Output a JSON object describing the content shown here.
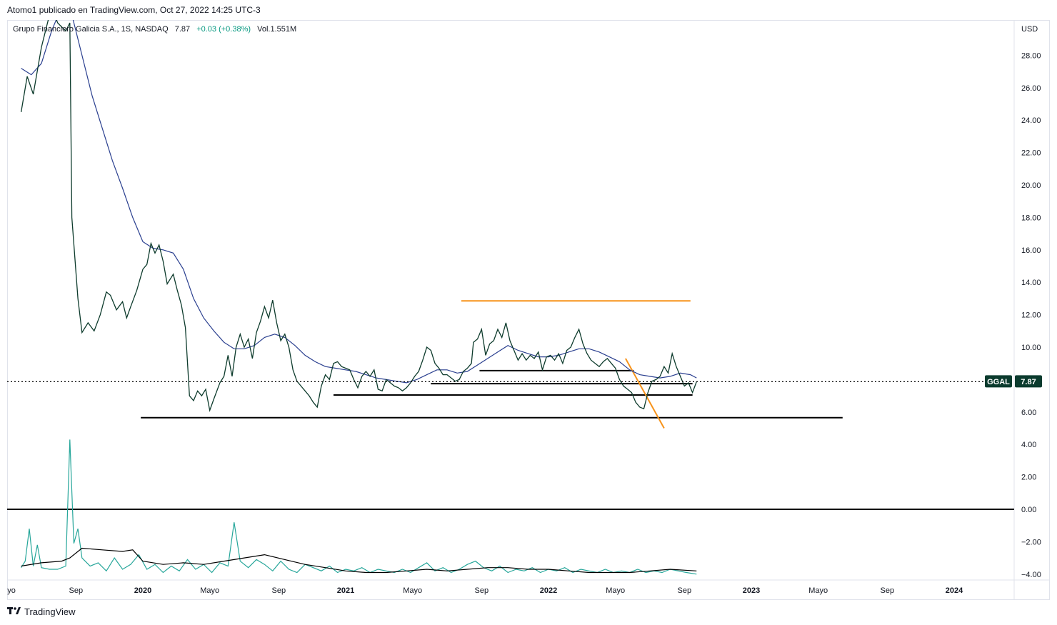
{
  "header": {
    "publisher_line": "Atomo1 publicado en TradingView.com, Oct 27, 2022 14:25 UTC-3"
  },
  "legend": {
    "name": "Grupo Financiero Galicia S.A., 1S, NASDAQ",
    "price": "7.87",
    "change": "+0.03 (+0.38%)",
    "volume": "Vol.1.551M"
  },
  "price_badge": {
    "symbol": "GGAL",
    "value": "7.87",
    "color": "#0b3b2e"
  },
  "brand": {
    "name": "TradingView",
    "logo": "tradingview-logo-icon"
  },
  "colors": {
    "price_line": "#0d3b2c",
    "ma_line": "#2a3f8f",
    "osc_line": "#26a69a",
    "osc_avg": "#000000",
    "orange": "#f7931a",
    "support": "#000000"
  },
  "chart_data": {
    "type": "line",
    "currency": "USD",
    "y_ticks": [
      "28.00",
      "26.00",
      "24.00",
      "22.00",
      "20.00",
      "18.00",
      "16.00",
      "14.00",
      "12.00",
      "10.00",
      "8.00",
      "6.00",
      "4.00",
      "2.00",
      "0.00",
      "−2.00",
      "−4.00"
    ],
    "x_ticks": [
      {
        "label": "yo",
        "bold": false
      },
      {
        "label": "Sep",
        "bold": false
      },
      {
        "label": "2020",
        "bold": true
      },
      {
        "label": "Mayo",
        "bold": false
      },
      {
        "label": "Sep",
        "bold": false
      },
      {
        "label": "2021",
        "bold": true
      },
      {
        "label": "Mayo",
        "bold": false
      },
      {
        "label": "Sep",
        "bold": false
      },
      {
        "label": "2022",
        "bold": true
      },
      {
        "label": "Mayo",
        "bold": false
      },
      {
        "label": "Sep",
        "bold": false
      },
      {
        "label": "2023",
        "bold": true
      },
      {
        "label": "Mayo",
        "bold": false
      },
      {
        "label": "Sep",
        "bold": false
      },
      {
        "label": "2024",
        "bold": true
      }
    ],
    "last_price": 7.87,
    "price_series": [
      [
        2019.4,
        24.5
      ],
      [
        2019.43,
        26.7
      ],
      [
        2019.46,
        25.6
      ],
      [
        2019.5,
        28.5
      ],
      [
        2019.55,
        31
      ],
      [
        2019.58,
        30
      ],
      [
        2019.62,
        29.5
      ],
      [
        2019.64,
        30.0
      ],
      [
        2019.65,
        18.0
      ],
      [
        2019.68,
        13.0
      ],
      [
        2019.7,
        10.9
      ],
      [
        2019.73,
        11.5
      ],
      [
        2019.76,
        11.0
      ],
      [
        2019.79,
        12.0
      ],
      [
        2019.82,
        13.4
      ],
      [
        2019.84,
        13.2
      ],
      [
        2019.87,
        12.3
      ],
      [
        2019.9,
        12.8
      ],
      [
        2019.92,
        11.8
      ],
      [
        2019.94,
        12.5
      ],
      [
        2019.97,
        13.5
      ],
      [
        2020.0,
        14.8
      ],
      [
        2020.02,
        15.1
      ],
      [
        2020.04,
        16.4
      ],
      [
        2020.06,
        15.8
      ],
      [
        2020.08,
        16.3
      ],
      [
        2020.1,
        15.3
      ],
      [
        2020.12,
        13.9
      ],
      [
        2020.15,
        14.5
      ],
      [
        2020.17,
        13.5
      ],
      [
        2020.19,
        12.6
      ],
      [
        2020.21,
        11.2
      ],
      [
        2020.23,
        7.0
      ],
      [
        2020.25,
        6.7
      ],
      [
        2020.27,
        7.3
      ],
      [
        2020.29,
        7.0
      ],
      [
        2020.31,
        7.4
      ],
      [
        2020.33,
        6.1
      ],
      [
        2020.35,
        6.8
      ],
      [
        2020.38,
        7.8
      ],
      [
        2020.4,
        8.2
      ],
      [
        2020.42,
        9.5
      ],
      [
        2020.44,
        8.2
      ],
      [
        2020.46,
        10.0
      ],
      [
        2020.48,
        10.8
      ],
      [
        2020.5,
        10.0
      ],
      [
        2020.52,
        10.5
      ],
      [
        2020.54,
        9.3
      ],
      [
        2020.56,
        10.9
      ],
      [
        2020.58,
        11.6
      ],
      [
        2020.6,
        12.5
      ],
      [
        2020.62,
        11.8
      ],
      [
        2020.64,
        12.9
      ],
      [
        2020.66,
        11.5
      ],
      [
        2020.68,
        10.4
      ],
      [
        2020.7,
        10.8
      ],
      [
        2020.72,
        10.0
      ],
      [
        2020.74,
        8.6
      ],
      [
        2020.76,
        7.9
      ],
      [
        2020.78,
        7.6
      ],
      [
        2020.8,
        7.3
      ],
      [
        2020.82,
        7.0
      ],
      [
        2020.84,
        6.6
      ],
      [
        2020.86,
        6.3
      ],
      [
        2020.88,
        7.6
      ],
      [
        2020.9,
        8.3
      ],
      [
        2020.92,
        8.0
      ],
      [
        2020.94,
        9.0
      ],
      [
        2020.96,
        9.1
      ],
      [
        2020.98,
        8.8
      ],
      [
        2021.0,
        8.7
      ],
      [
        2021.02,
        8.6
      ],
      [
        2021.04,
        8.0
      ],
      [
        2021.06,
        7.5
      ],
      [
        2021.08,
        8.2
      ],
      [
        2021.1,
        8.5
      ],
      [
        2021.12,
        8.2
      ],
      [
        2021.14,
        8.6
      ],
      [
        2021.16,
        7.4
      ],
      [
        2021.18,
        7.3
      ],
      [
        2021.2,
        8.0
      ],
      [
        2021.22,
        7.8
      ],
      [
        2021.24,
        7.6
      ],
      [
        2021.26,
        7.5
      ],
      [
        2021.28,
        7.3
      ],
      [
        2021.3,
        7.5
      ],
      [
        2021.32,
        7.8
      ],
      [
        2021.34,
        8.2
      ],
      [
        2021.36,
        8.5
      ],
      [
        2021.38,
        9.2
      ],
      [
        2021.4,
        10.0
      ],
      [
        2021.42,
        9.8
      ],
      [
        2021.44,
        9.0
      ],
      [
        2021.46,
        8.7
      ],
      [
        2021.48,
        8.3
      ],
      [
        2021.5,
        8.3
      ],
      [
        2021.52,
        8.1
      ],
      [
        2021.54,
        7.9
      ],
      [
        2021.56,
        8.0
      ],
      [
        2021.58,
        8.5
      ],
      [
        2021.6,
        8.7
      ],
      [
        2021.62,
        9.0
      ],
      [
        2021.63,
        10.3
      ],
      [
        2021.65,
        10.5
      ],
      [
        2021.67,
        11.1
      ],
      [
        2021.69,
        9.5
      ],
      [
        2021.71,
        10.2
      ],
      [
        2021.73,
        10.4
      ],
      [
        2021.75,
        11.1
      ],
      [
        2021.77,
        10.6
      ],
      [
        2021.79,
        11.5
      ],
      [
        2021.81,
        10.4
      ],
      [
        2021.83,
        9.8
      ],
      [
        2021.85,
        9.2
      ],
      [
        2021.87,
        9.6
      ],
      [
        2021.89,
        9.2
      ],
      [
        2021.91,
        9.5
      ],
      [
        2021.93,
        9.3
      ],
      [
        2021.95,
        9.7
      ],
      [
        2021.97,
        8.6
      ],
      [
        2021.99,
        9.4
      ],
      [
        2022.01,
        9.5
      ],
      [
        2022.03,
        9.2
      ],
      [
        2022.05,
        9.6
      ],
      [
        2022.07,
        9.0
      ],
      [
        2022.09,
        9.8
      ],
      [
        2022.11,
        10.0
      ],
      [
        2022.13,
        10.6
      ],
      [
        2022.15,
        11.1
      ],
      [
        2022.17,
        10.2
      ],
      [
        2022.19,
        9.6
      ],
      [
        2022.21,
        9.2
      ],
      [
        2022.23,
        9.0
      ],
      [
        2022.25,
        8.8
      ],
      [
        2022.27,
        9.1
      ],
      [
        2022.29,
        9.3
      ],
      [
        2022.31,
        9.0
      ],
      [
        2022.33,
        8.7
      ],
      [
        2022.35,
        8.0
      ],
      [
        2022.37,
        7.6
      ],
      [
        2022.39,
        7.4
      ],
      [
        2022.41,
        7.2
      ],
      [
        2022.43,
        6.6
      ],
      [
        2022.45,
        6.3
      ],
      [
        2022.47,
        6.2
      ],
      [
        2022.49,
        7.2
      ],
      [
        2022.51,
        7.9
      ],
      [
        2022.53,
        8.0
      ],
      [
        2022.55,
        8.2
      ],
      [
        2022.57,
        8.8
      ],
      [
        2022.59,
        8.4
      ],
      [
        2022.61,
        9.6
      ],
      [
        2022.63,
        8.8
      ],
      [
        2022.65,
        8.2
      ],
      [
        2022.67,
        7.6
      ],
      [
        2022.69,
        7.8
      ],
      [
        2022.71,
        7.2
      ],
      [
        2022.73,
        7.87
      ]
    ],
    "ma_series": [
      [
        2019.4,
        27.2
      ],
      [
        2019.45,
        26.8
      ],
      [
        2019.5,
        27.5
      ],
      [
        2019.55,
        29.5
      ],
      [
        2019.6,
        31.0
      ],
      [
        2019.65,
        30.5
      ],
      [
        2019.7,
        28.0
      ],
      [
        2019.75,
        25.5
      ],
      [
        2019.8,
        23.5
      ],
      [
        2019.85,
        21.5
      ],
      [
        2019.9,
        19.8
      ],
      [
        2019.95,
        18.0
      ],
      [
        2020.0,
        16.5
      ],
      [
        2020.05,
        16.1
      ],
      [
        2020.1,
        16.0
      ],
      [
        2020.15,
        15.8
      ],
      [
        2020.2,
        14.8
      ],
      [
        2020.25,
        13.0
      ],
      [
        2020.3,
        11.8
      ],
      [
        2020.35,
        11.0
      ],
      [
        2020.4,
        10.3
      ],
      [
        2020.45,
        9.9
      ],
      [
        2020.5,
        9.9
      ],
      [
        2020.55,
        10.1
      ],
      [
        2020.6,
        10.6
      ],
      [
        2020.65,
        10.8
      ],
      [
        2020.7,
        10.6
      ],
      [
        2020.75,
        10.1
      ],
      [
        2020.8,
        9.5
      ],
      [
        2020.85,
        9.1
      ],
      [
        2020.9,
        8.8
      ],
      [
        2020.95,
        8.7
      ],
      [
        2021.0,
        8.6
      ],
      [
        2021.05,
        8.5
      ],
      [
        2021.1,
        8.3
      ],
      [
        2021.15,
        8.1
      ],
      [
        2021.2,
        8.0
      ],
      [
        2021.25,
        7.9
      ],
      [
        2021.3,
        7.8
      ],
      [
        2021.35,
        8.0
      ],
      [
        2021.4,
        8.3
      ],
      [
        2021.45,
        8.6
      ],
      [
        2021.5,
        8.6
      ],
      [
        2021.55,
        8.4
      ],
      [
        2021.6,
        8.5
      ],
      [
        2021.65,
        8.9
      ],
      [
        2021.7,
        9.3
      ],
      [
        2021.75,
        9.7
      ],
      [
        2021.8,
        10.1
      ],
      [
        2021.85,
        9.8
      ],
      [
        2021.9,
        9.6
      ],
      [
        2021.95,
        9.4
      ],
      [
        2022.0,
        9.4
      ],
      [
        2022.05,
        9.5
      ],
      [
        2022.1,
        9.7
      ],
      [
        2022.15,
        9.9
      ],
      [
        2022.2,
        9.9
      ],
      [
        2022.25,
        9.7
      ],
      [
        2022.3,
        9.4
      ],
      [
        2022.35,
        9.1
      ],
      [
        2022.4,
        8.6
      ],
      [
        2022.45,
        8.3
      ],
      [
        2022.5,
        8.2
      ],
      [
        2022.55,
        8.1
      ],
      [
        2022.6,
        8.2
      ],
      [
        2022.65,
        8.4
      ],
      [
        2022.7,
        8.3
      ],
      [
        2022.73,
        8.1
      ]
    ],
    "osc_series": [
      [
        2019.4,
        -3.6
      ],
      [
        2019.42,
        -3.2
      ],
      [
        2019.44,
        -1.2
      ],
      [
        2019.46,
        -3.5
      ],
      [
        2019.48,
        -2.2
      ],
      [
        2019.5,
        -3.6
      ],
      [
        2019.54,
        -3.7
      ],
      [
        2019.58,
        -3.7
      ],
      [
        2019.62,
        -3.5
      ],
      [
        2019.64,
        4.3
      ],
      [
        2019.66,
        -2.1
      ],
      [
        2019.68,
        -1.2
      ],
      [
        2019.7,
        -3.0
      ],
      [
        2019.74,
        -3.5
      ],
      [
        2019.78,
        -3.3
      ],
      [
        2019.82,
        -3.8
      ],
      [
        2019.86,
        -3.0
      ],
      [
        2019.9,
        -3.7
      ],
      [
        2019.94,
        -3.4
      ],
      [
        2019.98,
        -2.8
      ],
      [
        2020.02,
        -3.7
      ],
      [
        2020.06,
        -3.4
      ],
      [
        2020.1,
        -3.9
      ],
      [
        2020.14,
        -3.5
      ],
      [
        2020.18,
        -3.8
      ],
      [
        2020.22,
        -3.1
      ],
      [
        2020.26,
        -3.7
      ],
      [
        2020.3,
        -3.4
      ],
      [
        2020.34,
        -3.9
      ],
      [
        2020.38,
        -3.3
      ],
      [
        2020.42,
        -3.5
      ],
      [
        2020.45,
        -0.8
      ],
      [
        2020.48,
        -3.2
      ],
      [
        2020.52,
        -3.6
      ],
      [
        2020.56,
        -3.1
      ],
      [
        2020.6,
        -3.4
      ],
      [
        2020.64,
        -3.8
      ],
      [
        2020.68,
        -3.2
      ],
      [
        2020.72,
        -3.7
      ],
      [
        2020.76,
        -3.9
      ],
      [
        2020.8,
        -3.4
      ],
      [
        2020.84,
        -3.6
      ],
      [
        2020.88,
        -3.8
      ],
      [
        2020.92,
        -3.5
      ],
      [
        2020.96,
        -3.9
      ],
      [
        2021.0,
        -3.7
      ],
      [
        2021.04,
        -3.8
      ],
      [
        2021.08,
        -3.6
      ],
      [
        2021.12,
        -3.9
      ],
      [
        2021.16,
        -3.7
      ],
      [
        2021.2,
        -3.8
      ],
      [
        2021.24,
        -3.9
      ],
      [
        2021.28,
        -3.7
      ],
      [
        2021.32,
        -3.9
      ],
      [
        2021.36,
        -3.6
      ],
      [
        2021.4,
        -3.3
      ],
      [
        2021.44,
        -3.8
      ],
      [
        2021.48,
        -3.6
      ],
      [
        2021.52,
        -3.9
      ],
      [
        2021.56,
        -3.7
      ],
      [
        2021.6,
        -3.4
      ],
      [
        2021.64,
        -3.2
      ],
      [
        2021.68,
        -3.6
      ],
      [
        2021.72,
        -3.8
      ],
      [
        2021.76,
        -3.5
      ],
      [
        2021.8,
        -3.9
      ],
      [
        2021.84,
        -3.7
      ],
      [
        2021.88,
        -3.8
      ],
      [
        2021.92,
        -3.6
      ],
      [
        2021.96,
        -3.9
      ],
      [
        2022.0,
        -3.7
      ],
      [
        2022.04,
        -3.8
      ],
      [
        2022.08,
        -3.6
      ],
      [
        2022.12,
        -3.9
      ],
      [
        2022.16,
        -3.7
      ],
      [
        2022.2,
        -3.8
      ],
      [
        2022.24,
        -3.9
      ],
      [
        2022.28,
        -3.7
      ],
      [
        2022.32,
        -3.9
      ],
      [
        2022.36,
        -3.8
      ],
      [
        2022.4,
        -3.9
      ],
      [
        2022.44,
        -3.7
      ],
      [
        2022.48,
        -3.9
      ],
      [
        2022.52,
        -3.8
      ],
      [
        2022.56,
        -3.9
      ],
      [
        2022.6,
        -3.7
      ],
      [
        2022.64,
        -3.8
      ],
      [
        2022.68,
        -3.9
      ],
      [
        2022.73,
        -4.0
      ]
    ],
    "osc_avg_series": [
      [
        2019.4,
        -3.5
      ],
      [
        2019.5,
        -3.3
      ],
      [
        2019.6,
        -3.2
      ],
      [
        2019.64,
        -3.0
      ],
      [
        2019.7,
        -2.4
      ],
      [
        2019.8,
        -2.5
      ],
      [
        2019.9,
        -2.6
      ],
      [
        2019.95,
        -2.5
      ],
      [
        2020.0,
        -3.2
      ],
      [
        2020.1,
        -3.4
      ],
      [
        2020.2,
        -3.3
      ],
      [
        2020.3,
        -3.4
      ],
      [
        2020.4,
        -3.2
      ],
      [
        2020.5,
        -3.0
      ],
      [
        2020.6,
        -2.8
      ],
      [
        2020.7,
        -3.1
      ],
      [
        2020.8,
        -3.4
      ],
      [
        2020.9,
        -3.6
      ],
      [
        2021.0,
        -3.8
      ],
      [
        2021.1,
        -3.9
      ],
      [
        2021.2,
        -3.9
      ],
      [
        2021.3,
        -3.8
      ],
      [
        2021.4,
        -3.7
      ],
      [
        2021.5,
        -3.8
      ],
      [
        2021.6,
        -3.7
      ],
      [
        2021.7,
        -3.6
      ],
      [
        2021.8,
        -3.6
      ],
      [
        2021.9,
        -3.7
      ],
      [
        2022.0,
        -3.7
      ],
      [
        2022.1,
        -3.8
      ],
      [
        2022.2,
        -3.9
      ],
      [
        2022.3,
        -3.9
      ],
      [
        2022.4,
        -3.9
      ],
      [
        2022.5,
        -3.8
      ],
      [
        2022.6,
        -3.7
      ],
      [
        2022.73,
        -3.8
      ]
    ],
    "annotations": {
      "horizontal_lines": [
        {
          "name": "resistance-orange",
          "from": 2021.57,
          "to": 2022.7,
          "y": 12.85,
          "color": "orange"
        },
        {
          "name": "support-1",
          "from": 2021.66,
          "to": 2022.42,
          "y": 8.55,
          "color": "black"
        },
        {
          "name": "support-2",
          "from": 2021.42,
          "to": 2022.71,
          "y": 7.75,
          "color": "black"
        },
        {
          "name": "support-3",
          "from": 2020.94,
          "to": 2022.71,
          "y": 7.05,
          "color": "black"
        },
        {
          "name": "support-4",
          "from": 2019.99,
          "to": 2023.45,
          "y": 5.65,
          "color": "black"
        }
      ],
      "trend_line": {
        "from": [
          2022.38,
          9.3
        ],
        "to": [
          2022.57,
          5.0
        ]
      },
      "zero_line_value": 0
    }
  }
}
